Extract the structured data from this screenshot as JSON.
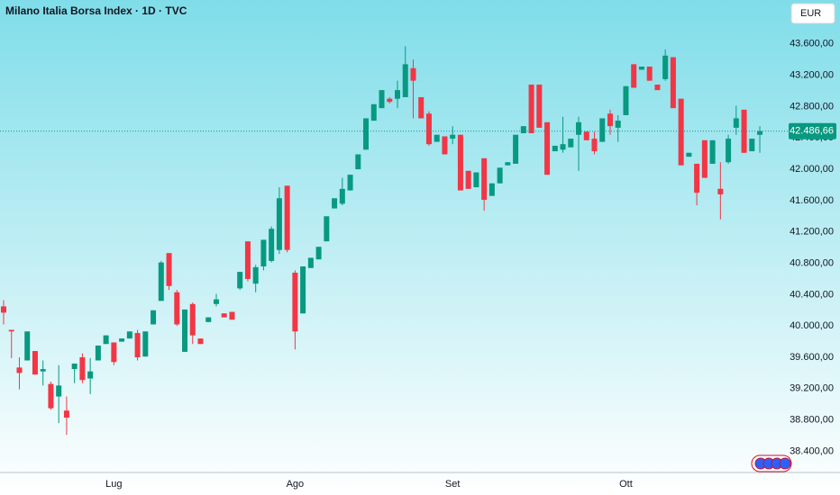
{
  "chart_data": {
    "type": "candlestick",
    "title": "Milano Italia Borsa Index · 1D · TVC",
    "currency": "EUR",
    "categories": [
      null,
      null,
      null,
      null,
      null,
      null,
      null,
      null,
      null,
      null,
      null,
      null,
      null,
      null,
      "Lug",
      null,
      null,
      null,
      null,
      null,
      null,
      null,
      null,
      null,
      null,
      null,
      null,
      null,
      null,
      null,
      null,
      null,
      null,
      null,
      null,
      null,
      null,
      "Ago",
      null,
      null,
      null,
      null,
      null,
      null,
      null,
      null,
      null,
      null,
      null,
      null,
      null,
      null,
      null,
      null,
      null,
      null,
      null,
      "Set",
      null,
      null,
      null,
      null,
      null,
      null,
      null,
      null,
      null,
      null,
      null,
      null,
      null,
      null,
      null,
      null,
      null,
      null,
      null,
      null,
      null,
      "Ott",
      null,
      null,
      null,
      null,
      null,
      null,
      null,
      null,
      null,
      null,
      null,
      null,
      null,
      null,
      null,
      null,
      null
    ],
    "open": [
      40250,
      39950,
      39470,
      39560,
      39680,
      39420,
      39260,
      39100,
      38920,
      39450,
      39600,
      39330,
      39560,
      39770,
      39790,
      39800,
      39840,
      39910,
      39610,
      40020,
      40320,
      40930,
      40430,
      39670,
      40280,
      39840,
      40050,
      40280,
      40160,
      40180,
      40480,
      41080,
      40540,
      40760,
      40830,
      40970,
      41790,
      40680,
      40160,
      40740,
      40850,
      41080,
      41500,
      41560,
      41730,
      42000,
      42250,
      42620,
      42780,
      42900,
      42900,
      42920,
      43290,
      42920,
      42710,
      42350,
      42420,
      42390,
      42440,
      41980,
      41770,
      42140,
      41660,
      41820,
      42050,
      42070,
      42460,
      43080,
      43080,
      42600,
      42230,
      42250,
      42280,
      42440,
      42480,
      42390,
      42350,
      42710,
      42530,
      42690,
      43340,
      43270,
      43310,
      43080,
      43150,
      43430,
      42900,
      42160,
      42070,
      42370,
      42070,
      41750,
      42090,
      42530,
      42760,
      42230,
      42440
    ],
    "high": [
      40330,
      39950,
      39600,
      39930,
      39680,
      39560,
      39290,
      39500,
      39100,
      39520,
      39650,
      39590,
      39750,
      39880,
      39790,
      39840,
      39930,
      39950,
      39930,
      40200,
      40830,
      40930,
      40460,
      40210,
      40300,
      39840,
      40110,
      40410,
      40160,
      40180,
      40690,
      41080,
      40780,
      41100,
      41270,
      41770,
      41790,
      40710,
      40760,
      40870,
      41010,
      41400,
      41630,
      41890,
      41930,
      42190,
      42650,
      42830,
      43010,
      42920,
      43130,
      43570,
      43400,
      42920,
      42740,
      42440,
      42420,
      42550,
      42440,
      41980,
      41960,
      42140,
      41820,
      42020,
      42090,
      42440,
      42550,
      43080,
      43080,
      42600,
      42300,
      42670,
      42390,
      42670,
      42480,
      42480,
      42650,
      42760,
      42690,
      43060,
      43340,
      43310,
      43310,
      43080,
      43530,
      43430,
      42900,
      42210,
      42070,
      42370,
      42370,
      42090,
      42440,
      42810,
      42760,
      42390,
      42550
    ],
    "low": [
      40020,
      39590,
      39190,
      39560,
      39380,
      39240,
      38930,
      38760,
      38610,
      39270,
      39270,
      39130,
      39560,
      39770,
      39500,
      39800,
      39840,
      39560,
      39610,
      40020,
      40320,
      40460,
      40000,
      39670,
      39770,
      39770,
      40050,
      40250,
      40110,
      40080,
      40460,
      40570,
      40430,
      40710,
      40810,
      40920,
      40940,
      39700,
      40160,
      40740,
      40850,
      41080,
      41500,
      41540,
      41730,
      42000,
      42250,
      42620,
      42780,
      42840,
      42780,
      42920,
      42650,
      42650,
      42300,
      42350,
      42190,
      42320,
      41730,
      41750,
      41770,
      41470,
      41660,
      41820,
      42050,
      42070,
      42460,
      42460,
      42530,
      41930,
      42230,
      42210,
      42280,
      41980,
      42370,
      42190,
      42350,
      42440,
      42350,
      42690,
      43040,
      43270,
      43130,
      43010,
      43130,
      42780,
      42050,
      42160,
      41540,
      41890,
      42070,
      41360,
      42070,
      42440,
      42210,
      42230,
      42210
    ],
    "close": [
      40170,
      39930,
      39400,
      39930,
      39380,
      39450,
      38950,
      39240,
      38830,
      39520,
      39310,
      39420,
      39750,
      39880,
      39540,
      39840,
      39930,
      39600,
      39930,
      40200,
      40810,
      40510,
      40020,
      40210,
      39880,
      39770,
      40110,
      40340,
      40110,
      40080,
      40690,
      40600,
      40750,
      41100,
      41240,
      41630,
      40970,
      39930,
      40760,
      40870,
      41010,
      41400,
      41630,
      41750,
      41930,
      42190,
      42650,
      42830,
      43010,
      42860,
      43010,
      43340,
      43130,
      42650,
      42320,
      42440,
      42190,
      42440,
      41730,
      41750,
      41960,
      41610,
      41820,
      42020,
      42090,
      42440,
      42550,
      42460,
      42530,
      41930,
      42300,
      42320,
      42390,
      42600,
      42370,
      42230,
      42650,
      42550,
      42620,
      43060,
      43040,
      43310,
      43130,
      43010,
      43450,
      42780,
      42050,
      42210,
      41700,
      41890,
      42370,
      41680,
      42390,
      42650,
      42210,
      42390,
      42486.66
    ],
    "last_price_label": "42.486,66",
    "up_color": "#089981",
    "down_color": "#f23645",
    "ylim": [
      38130,
      44160
    ],
    "yticks": [
      {
        "value": 38400,
        "label": "38.400,00"
      },
      {
        "value": 38800,
        "label": "38.800,00"
      },
      {
        "value": 39200,
        "label": "39.200,00"
      },
      {
        "value": 39600,
        "label": "39.600,00"
      },
      {
        "value": 40000,
        "label": "40.000,00"
      },
      {
        "value": 40400,
        "label": "40.400,00"
      },
      {
        "value": 40800,
        "label": "40.800,00"
      },
      {
        "value": 41200,
        "label": "41.200,00"
      },
      {
        "value": 41600,
        "label": "41.600,00"
      },
      {
        "value": 42000,
        "label": "42.000,00"
      },
      {
        "value": 42400,
        "label": "42.400,00"
      },
      {
        "value": 42800,
        "label": "42.800,00"
      },
      {
        "value": 43200,
        "label": "43.200,00"
      },
      {
        "value": 43600,
        "label": "43.600,00"
      }
    ]
  }
}
